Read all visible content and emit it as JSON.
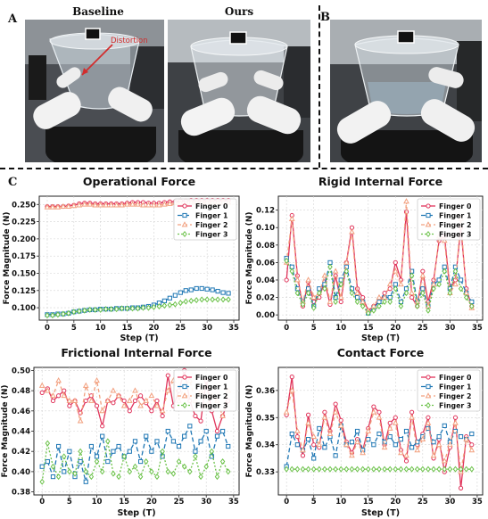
{
  "panels": {
    "a": {
      "letter": "A",
      "titles": [
        "Baseline",
        "Ours"
      ],
      "annotation": "Distortion"
    },
    "b": {
      "letter": "B"
    },
    "c": {
      "letter": "C"
    }
  },
  "colors": {
    "finger0": "#e0335a",
    "finger1": "#1f77b4",
    "finger2": "#f2a07f",
    "finger3": "#6cc24a",
    "annotation": "#d22d2d"
  },
  "chart_data": [
    {
      "type": "line",
      "title": "Operational Force",
      "xlabel": "Step (T)",
      "ylabel": "Force Magnitude (N)",
      "xlim": [
        -1.5,
        36
      ],
      "ylim": [
        0.082,
        0.262
      ],
      "xticks": [
        0,
        5,
        10,
        15,
        20,
        25,
        30,
        35
      ],
      "yticks": [
        0.1,
        0.125,
        0.15,
        0.175,
        0.2,
        0.225,
        0.25
      ],
      "ytick_labels": [
        "0.100",
        "0.125",
        "0.150",
        "0.175",
        "0.200",
        "0.225",
        "0.250"
      ],
      "grid": true,
      "legend": "top-right",
      "x": [
        0,
        1,
        2,
        3,
        4,
        5,
        6,
        7,
        8,
        9,
        10,
        11,
        12,
        13,
        14,
        15,
        16,
        17,
        18,
        19,
        20,
        21,
        22,
        23,
        24,
        25,
        26,
        27,
        28,
        29,
        30,
        31,
        32,
        33,
        34
      ],
      "series": [
        {
          "name": "Finger 0",
          "values": [
            0.247,
            0.247,
            0.247,
            0.247,
            0.248,
            0.249,
            0.251,
            0.252,
            0.252,
            0.251,
            0.251,
            0.251,
            0.251,
            0.251,
            0.251,
            0.252,
            0.253,
            0.253,
            0.253,
            0.252,
            0.252,
            0.252,
            0.253,
            0.254,
            0.254,
            0.255,
            0.255,
            0.256,
            0.256,
            0.256,
            0.256,
            0.256,
            0.256,
            0.256,
            0.256
          ]
        },
        {
          "name": "Finger 1",
          "values": [
            0.09,
            0.09,
            0.091,
            0.091,
            0.092,
            0.094,
            0.095,
            0.096,
            0.097,
            0.097,
            0.098,
            0.098,
            0.098,
            0.099,
            0.099,
            0.099,
            0.1,
            0.1,
            0.101,
            0.102,
            0.104,
            0.107,
            0.11,
            0.114,
            0.118,
            0.122,
            0.125,
            0.126,
            0.128,
            0.128,
            0.127,
            0.126,
            0.124,
            0.122,
            0.121
          ]
        },
        {
          "name": "Finger 2",
          "values": [
            0.246,
            0.246,
            0.246,
            0.247,
            0.247,
            0.248,
            0.249,
            0.25,
            0.25,
            0.249,
            0.249,
            0.249,
            0.249,
            0.249,
            0.249,
            0.25,
            0.25,
            0.25,
            0.249,
            0.249,
            0.249,
            0.249,
            0.25,
            0.251,
            0.252,
            0.252,
            0.252,
            0.253,
            0.253,
            0.253,
            0.253,
            0.253,
            0.253,
            0.253,
            0.253
          ]
        },
        {
          "name": "Finger 3",
          "values": [
            0.089,
            0.089,
            0.09,
            0.091,
            0.092,
            0.094,
            0.095,
            0.096,
            0.097,
            0.097,
            0.097,
            0.098,
            0.098,
            0.098,
            0.099,
            0.099,
            0.099,
            0.099,
            0.1,
            0.1,
            0.101,
            0.102,
            0.103,
            0.104,
            0.105,
            0.107,
            0.109,
            0.11,
            0.111,
            0.112,
            0.112,
            0.112,
            0.112,
            0.112,
            0.112
          ]
        }
      ]
    },
    {
      "type": "line",
      "title": "Rigid Internal Force",
      "xlabel": "Step (T)",
      "ylabel": "Force Magnitude (N)",
      "xlim": [
        -1.5,
        36
      ],
      "ylim": [
        -0.006,
        0.136
      ],
      "xticks": [
        0,
        5,
        10,
        15,
        20,
        25,
        30,
        35
      ],
      "yticks": [
        0.0,
        0.02,
        0.04,
        0.06,
        0.08,
        0.1,
        0.12
      ],
      "ytick_labels": [
        "0.00",
        "0.02",
        "0.04",
        "0.06",
        "0.08",
        "0.10",
        "0.12"
      ],
      "grid": true,
      "legend": "top-right",
      "x": [
        0,
        1,
        2,
        3,
        4,
        5,
        6,
        7,
        8,
        9,
        10,
        11,
        12,
        13,
        14,
        15,
        16,
        17,
        18,
        19,
        20,
        21,
        22,
        23,
        24,
        25,
        26,
        27,
        28,
        29,
        30,
        31,
        32,
        33,
        34
      ],
      "series": [
        {
          "name": "Finger 0",
          "values": [
            0.04,
            0.114,
            0.045,
            0.01,
            0.038,
            0.015,
            0.02,
            0.038,
            0.012,
            0.045,
            0.015,
            0.06,
            0.1,
            0.03,
            0.02,
            0.005,
            0.01,
            0.015,
            0.025,
            0.03,
            0.06,
            0.04,
            0.118,
            0.02,
            0.01,
            0.05,
            0.015,
            0.04,
            0.085,
            0.09,
            0.03,
            0.04,
            0.1,
            0.03,
            0.01
          ]
        },
        {
          "name": "Finger 1",
          "values": [
            0.065,
            0.055,
            0.03,
            0.015,
            0.03,
            0.01,
            0.03,
            0.035,
            0.06,
            0.02,
            0.04,
            0.055,
            0.03,
            0.02,
            0.015,
            0.002,
            0.008,
            0.015,
            0.02,
            0.02,
            0.035,
            0.015,
            0.03,
            0.05,
            0.015,
            0.03,
            0.01,
            0.035,
            0.04,
            0.055,
            0.03,
            0.055,
            0.04,
            0.025,
            0.015
          ]
        },
        {
          "name": "Finger 2",
          "values": [
            0.06,
            0.11,
            0.04,
            0.015,
            0.04,
            0.02,
            0.025,
            0.045,
            0.015,
            0.05,
            0.02,
            0.06,
            0.095,
            0.025,
            0.015,
            0.005,
            0.01,
            0.02,
            0.02,
            0.035,
            0.05,
            0.035,
            0.13,
            0.025,
            0.015,
            0.045,
            0.01,
            0.035,
            0.09,
            0.085,
            0.025,
            0.035,
            0.11,
            0.025,
            0.008
          ]
        },
        {
          "name": "Finger 3",
          "values": [
            0.062,
            0.05,
            0.025,
            0.012,
            0.025,
            0.008,
            0.025,
            0.03,
            0.055,
            0.015,
            0.035,
            0.05,
            0.025,
            0.015,
            0.01,
            0.002,
            0.005,
            0.01,
            0.015,
            0.015,
            0.03,
            0.01,
            0.025,
            0.045,
            0.01,
            0.025,
            0.005,
            0.03,
            0.035,
            0.05,
            0.025,
            0.05,
            0.03,
            0.02,
            0.01
          ]
        }
      ]
    },
    {
      "type": "line",
      "title": "Frictional Internal Force",
      "xlabel": "Step (T)",
      "ylabel": "Force Magnitude (N)",
      "xlim": [
        -1.5,
        36
      ],
      "ylim": [
        0.377,
        0.503
      ],
      "xticks": [
        0,
        5,
        10,
        15,
        20,
        25,
        30,
        35
      ],
      "yticks": [
        0.38,
        0.4,
        0.42,
        0.44,
        0.46,
        0.48,
        0.5
      ],
      "ytick_labels": [
        "0.38",
        "0.40",
        "0.42",
        "0.44",
        "0.46",
        "0.48",
        "0.50"
      ],
      "grid": true,
      "legend": "top-right",
      "x": [
        0,
        1,
        2,
        3,
        4,
        5,
        6,
        7,
        8,
        9,
        10,
        11,
        12,
        13,
        14,
        15,
        16,
        17,
        18,
        19,
        20,
        21,
        22,
        23,
        24,
        25,
        26,
        27,
        28,
        29,
        30,
        31,
        32,
        33,
        34
      ],
      "series": [
        {
          "name": "Finger 0",
          "values": [
            0.478,
            0.482,
            0.47,
            0.475,
            0.48,
            0.465,
            0.47,
            0.458,
            0.47,
            0.475,
            0.465,
            0.445,
            0.47,
            0.468,
            0.475,
            0.47,
            0.46,
            0.47,
            0.475,
            0.468,
            0.46,
            0.47,
            0.455,
            0.495,
            0.465,
            0.48,
            0.5,
            0.47,
            0.455,
            0.45,
            0.49,
            0.46,
            0.44,
            0.455,
            0.47
          ]
        },
        {
          "name": "Finger 1",
          "values": [
            0.405,
            0.41,
            0.395,
            0.425,
            0.4,
            0.42,
            0.395,
            0.41,
            0.39,
            0.425,
            0.415,
            0.435,
            0.41,
            0.42,
            0.425,
            0.415,
            0.42,
            0.43,
            0.41,
            0.435,
            0.42,
            0.43,
            0.415,
            0.44,
            0.43,
            0.425,
            0.435,
            0.445,
            0.42,
            0.43,
            0.44,
            0.415,
            0.435,
            0.44,
            0.425
          ]
        },
        {
          "name": "Finger 2",
          "values": [
            0.485,
            0.48,
            0.475,
            0.49,
            0.475,
            0.47,
            0.47,
            0.45,
            0.485,
            0.47,
            0.49,
            0.46,
            0.47,
            0.48,
            0.475,
            0.465,
            0.47,
            0.48,
            0.465,
            0.47,
            0.475,
            0.465,
            0.46,
            0.48,
            0.49,
            0.47,
            0.485,
            0.49,
            0.47,
            0.48,
            0.465,
            0.475,
            0.47,
            0.455,
            0.48
          ]
        },
        {
          "name": "Finger 3",
          "values": [
            0.39,
            0.428,
            0.405,
            0.395,
            0.415,
            0.4,
            0.398,
            0.42,
            0.4,
            0.395,
            0.41,
            0.4,
            0.43,
            0.398,
            0.395,
            0.415,
            0.4,
            0.405,
            0.395,
            0.41,
            0.4,
            0.395,
            0.42,
            0.4,
            0.398,
            0.41,
            0.405,
            0.4,
            0.415,
            0.395,
            0.405,
            0.42,
            0.395,
            0.41,
            0.4
          ]
        }
      ]
    },
    {
      "type": "line",
      "title": "Contact Force",
      "xlabel": "Step (T)",
      "ylabel": "Force Magnitude (N)",
      "xlim": [
        -1.5,
        36
      ],
      "ylim": [
        0.3215,
        0.3685
      ],
      "xticks": [
        0,
        5,
        10,
        15,
        20,
        25,
        30,
        35
      ],
      "yticks": [
        0.33,
        0.34,
        0.35,
        0.36
      ],
      "ytick_labels": [
        "0.33",
        "0.34",
        "0.35",
        "0.36"
      ],
      "grid": true,
      "legend": "top-right",
      "x": [
        0,
        1,
        2,
        3,
        4,
        5,
        6,
        7,
        8,
        9,
        10,
        11,
        12,
        13,
        14,
        15,
        16,
        17,
        18,
        19,
        20,
        21,
        22,
        23,
        24,
        25,
        26,
        27,
        28,
        29,
        30,
        31,
        32,
        33,
        34
      ],
      "series": [
        {
          "name": "Finger 0",
          "values": [
            0.351,
            0.365,
            0.343,
            0.336,
            0.351,
            0.34,
            0.339,
            0.352,
            0.345,
            0.355,
            0.349,
            0.341,
            0.337,
            0.342,
            0.338,
            0.346,
            0.354,
            0.352,
            0.34,
            0.348,
            0.35,
            0.338,
            0.334,
            0.352,
            0.34,
            0.344,
            0.35,
            0.335,
            0.342,
            0.33,
            0.339,
            0.35,
            0.324,
            0.343,
            0.34
          ]
        },
        {
          "name": "Finger 1",
          "values": [
            0.332,
            0.344,
            0.34,
            0.338,
            0.342,
            0.335,
            0.346,
            0.339,
            0.343,
            0.336,
            0.347,
            0.34,
            0.341,
            0.345,
            0.338,
            0.342,
            0.34,
            0.344,
            0.341,
            0.343,
            0.34,
            0.342,
            0.345,
            0.339,
            0.341,
            0.343,
            0.346,
            0.341,
            0.343,
            0.347,
            0.341,
            0.345,
            0.343,
            0.342,
            0.344
          ]
        },
        {
          "name": "Finger 2",
          "values": [
            0.352,
            0.36,
            0.345,
            0.338,
            0.348,
            0.343,
            0.34,
            0.35,
            0.344,
            0.352,
            0.347,
            0.34,
            0.336,
            0.341,
            0.337,
            0.345,
            0.352,
            0.35,
            0.339,
            0.346,
            0.348,
            0.337,
            0.336,
            0.35,
            0.338,
            0.342,
            0.348,
            0.336,
            0.34,
            0.334,
            0.34,
            0.348,
            0.33,
            0.342,
            0.338
          ]
        },
        {
          "name": "Finger 3",
          "values": [
            0.331,
            0.331,
            0.331,
            0.331,
            0.331,
            0.331,
            0.331,
            0.331,
            0.331,
            0.331,
            0.331,
            0.331,
            0.331,
            0.331,
            0.331,
            0.331,
            0.331,
            0.331,
            0.331,
            0.331,
            0.331,
            0.331,
            0.331,
            0.331,
            0.331,
            0.331,
            0.331,
            0.331,
            0.331,
            0.331,
            0.331,
            0.331,
            0.331,
            0.331,
            0.331
          ]
        }
      ]
    }
  ]
}
